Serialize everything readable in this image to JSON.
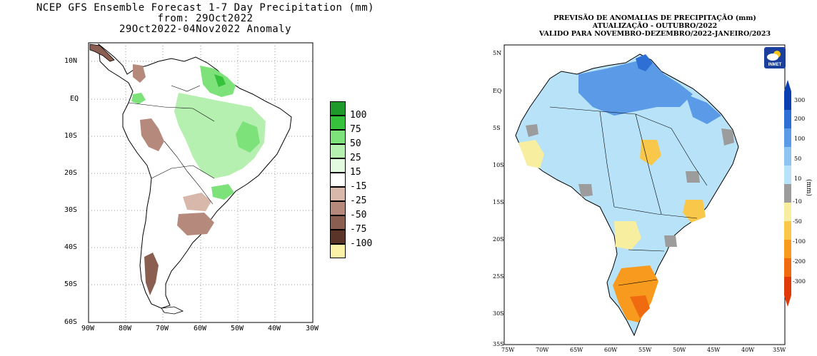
{
  "left_map": {
    "title_line1": "NCEP GFS Ensemble Forecast 1-7 Day Precipitation (mm)",
    "title_line2": "from: 29Oct2022",
    "title_line3": "29Oct2022-04Nov2022 Anomaly",
    "lat_labels": [
      "10N",
      "EQ",
      "10S",
      "20S",
      "30S",
      "40S",
      "50S",
      "60S"
    ],
    "lon_labels": [
      "90W",
      "80W",
      "70W",
      "60W",
      "50W",
      "40W",
      "30W"
    ],
    "legend_labels": [
      "100",
      "75",
      "50",
      "25",
      "15",
      "-15",
      "-25",
      "-50",
      "-75",
      "-100"
    ],
    "legend_colors": [
      "#1e9a2a",
      "#36c23c",
      "#7ee27a",
      "#b6f0b0",
      "#e4fae0",
      "#ffffff",
      "#d9b8ac",
      "#b58a7c",
      "#8a5e50",
      "#5a3428",
      "#fbf2a8"
    ]
  },
  "right_map": {
    "title_line1": "PREVISÃO DE ANOMALIAS DE PRECIPITAÇÃO (mm)",
    "title_line2": "ATUALIZAÇÃO - OUTUBRO/2022",
    "title_line3": "VALIDO PARA NOVEMBRO-DEZEMBRO/2022-JANEIRO/2023",
    "lat_labels": [
      "5N",
      "EQ",
      "5S",
      "10S",
      "15S",
      "20S",
      "25S",
      "30S",
      "35S"
    ],
    "lon_labels": [
      "75W",
      "70W",
      "65W",
      "60W",
      "55W",
      "50W",
      "45W",
      "40W",
      "35W"
    ],
    "legend_labels": [
      "300",
      "200",
      "100",
      "50",
      "10",
      "-10",
      "-50",
      "-100",
      "-200",
      "-300"
    ],
    "legend_colors": [
      "#0b3fb0",
      "#2e6fd6",
      "#5b9ae6",
      "#8ec4f2",
      "#b8e2f8",
      "#9c9c9c",
      "#f7eea0",
      "#f9c84a",
      "#f79a1e",
      "#f06a10",
      "#e03a08"
    ],
    "unit_label": "(mm)",
    "logo_text": "INMET"
  },
  "colors": {
    "land_outline": "#000000",
    "grid": "#9a9a9a",
    "sea": "#ffffff"
  }
}
